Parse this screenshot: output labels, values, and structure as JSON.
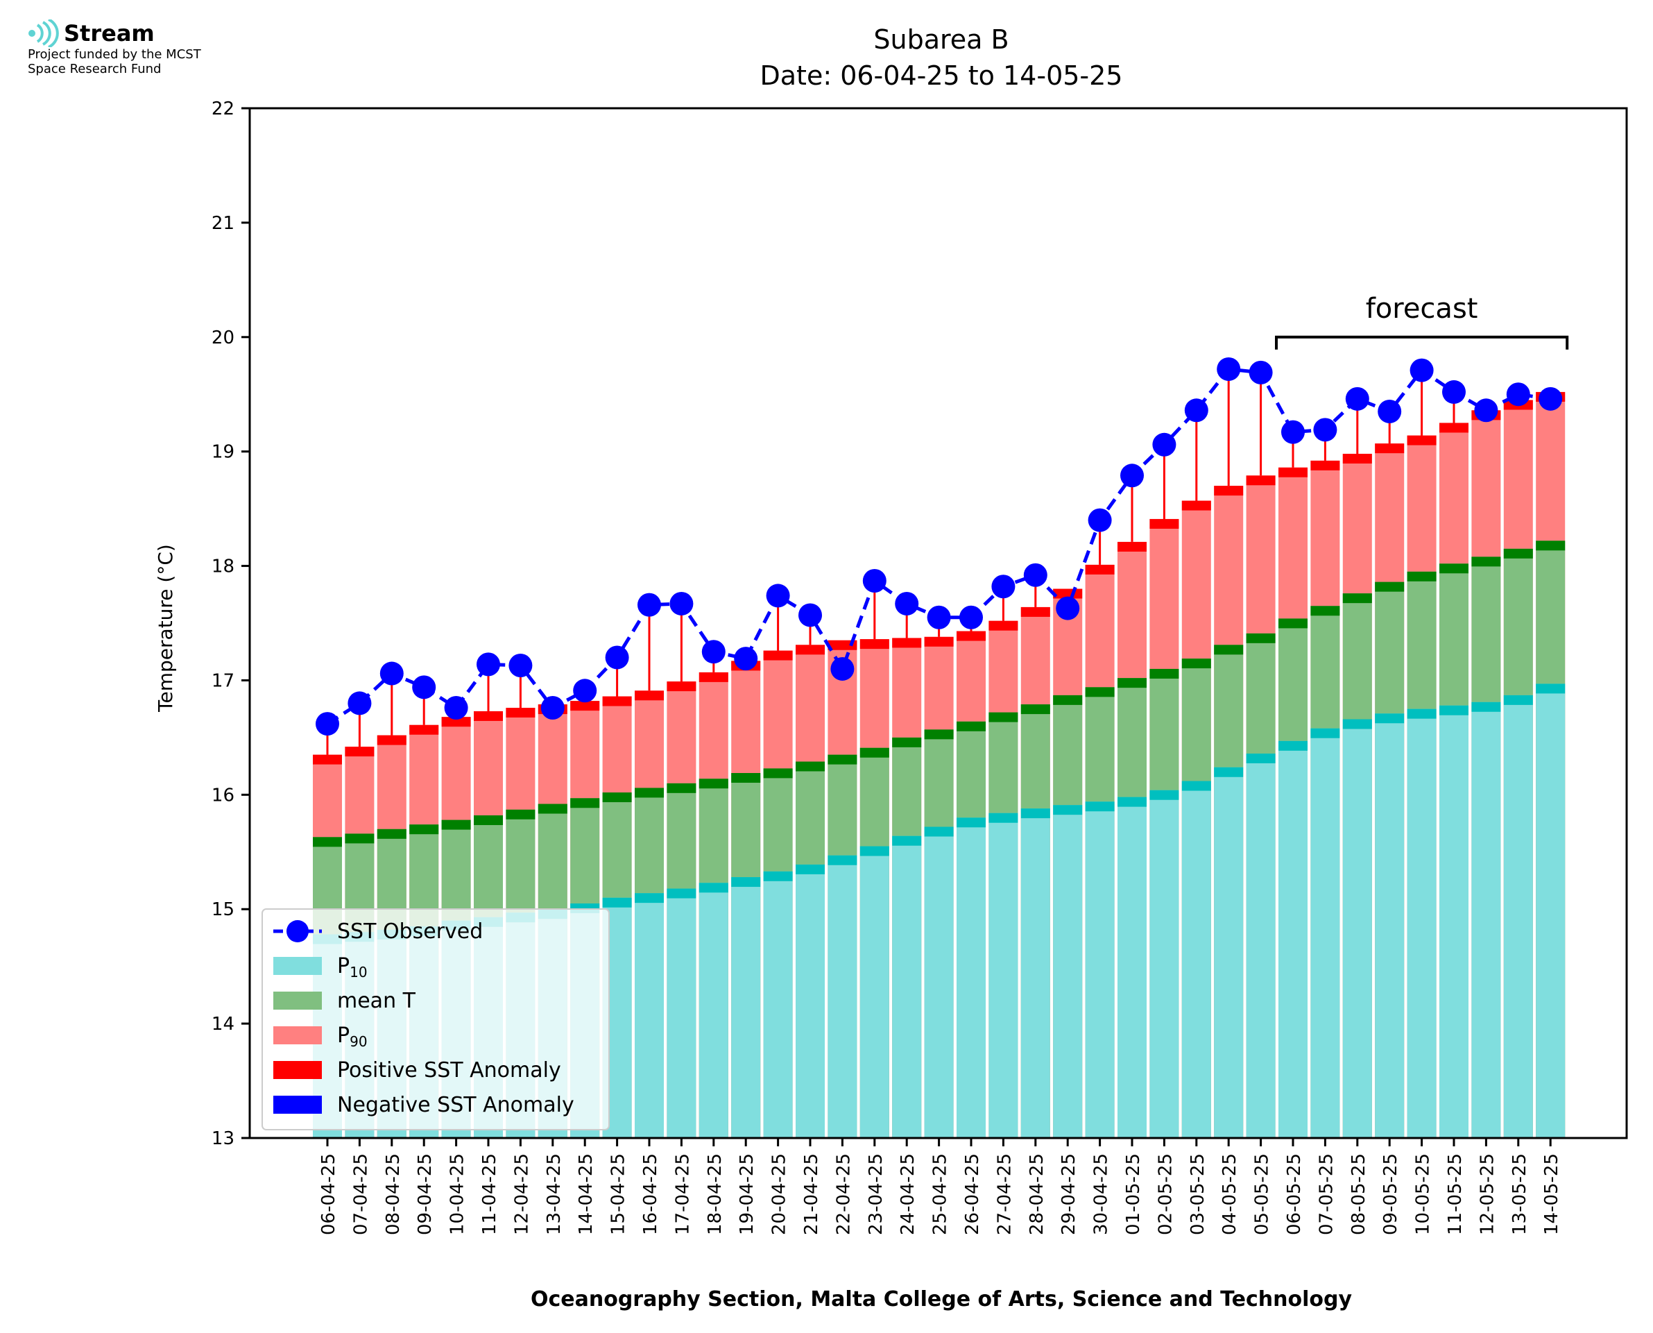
{
  "logo": {
    "name": "Stream",
    "line1": "Project funded by the MCST",
    "line2": "Space Research Fund",
    "icon": "stream-waves-icon",
    "color": "#5fd3d3"
  },
  "chart_data": {
    "type": "bar",
    "title": "Subarea B",
    "subtitle": "Date: 06-04-25 to 14-05-25",
    "xlabel": "Oceanography Section, Malta College of Arts, Science and Technology",
    "ylabel": "Temperature (°C)",
    "ylim": [
      13,
      22
    ],
    "yticks": [
      "13",
      "14",
      "15",
      "16",
      "17",
      "18",
      "19",
      "20",
      "21",
      "22"
    ],
    "grid": false,
    "legend_position": "bottom-left",
    "forecast_label": "forecast",
    "forecast_start": "06-05-25",
    "forecast_end": "14-05-25",
    "colors": {
      "p10": "#80dede",
      "p10_cap": "#00bfbf",
      "mean": "#80bf80",
      "mean_cap": "#008000",
      "p90": "#ff8080",
      "p90_cap": "#ff0000",
      "sst": "#0000ff",
      "positive_anomaly": "#ff0000",
      "negative_anomaly": "#0000ff"
    },
    "legend": [
      {
        "key": "sst",
        "label": "SST Observed",
        "kind": "line-marker"
      },
      {
        "key": "p10",
        "label": "P",
        "sub": "10",
        "kind": "patch"
      },
      {
        "key": "mean",
        "label": "mean T",
        "kind": "patch"
      },
      {
        "key": "p90",
        "label": "P",
        "sub": "90",
        "kind": "patch"
      },
      {
        "key": "positive_anomaly",
        "label": "Positive SST Anomaly",
        "kind": "patch"
      },
      {
        "key": "negative_anomaly",
        "label": "Negative SST Anomaly",
        "kind": "patch"
      }
    ],
    "categories": [
      "06-04-25",
      "07-04-25",
      "08-04-25",
      "09-04-25",
      "10-04-25",
      "11-04-25",
      "12-04-25",
      "13-04-25",
      "14-04-25",
      "15-04-25",
      "16-04-25",
      "17-04-25",
      "18-04-25",
      "19-04-25",
      "20-04-25",
      "21-04-25",
      "22-04-25",
      "23-04-25",
      "24-04-25",
      "25-04-25",
      "26-04-25",
      "27-04-25",
      "28-04-25",
      "29-04-25",
      "30-04-25",
      "01-05-25",
      "02-05-25",
      "03-05-25",
      "04-05-25",
      "05-05-25",
      "06-05-25",
      "07-05-25",
      "08-05-25",
      "09-05-25",
      "10-05-25",
      "11-05-25",
      "12-05-25",
      "13-05-25",
      "14-05-25"
    ],
    "series": [
      {
        "name": "P10",
        "values": [
          14.78,
          14.8,
          14.82,
          14.85,
          14.9,
          14.93,
          14.97,
          15.0,
          15.05,
          15.1,
          15.14,
          15.18,
          15.23,
          15.28,
          15.33,
          15.39,
          15.47,
          15.55,
          15.64,
          15.72,
          15.8,
          15.84,
          15.88,
          15.91,
          15.94,
          15.98,
          16.04,
          16.12,
          16.24,
          16.36,
          16.47,
          16.58,
          16.66,
          16.71,
          16.75,
          16.78,
          16.81,
          16.87,
          16.97
        ]
      },
      {
        "name": "mean T",
        "values": [
          15.63,
          15.66,
          15.7,
          15.74,
          15.78,
          15.82,
          15.87,
          15.92,
          15.97,
          16.02,
          16.06,
          16.1,
          16.14,
          16.19,
          16.23,
          16.29,
          16.35,
          16.41,
          16.5,
          16.57,
          16.64,
          16.72,
          16.79,
          16.87,
          16.94,
          17.02,
          17.1,
          17.19,
          17.31,
          17.41,
          17.54,
          17.65,
          17.76,
          17.86,
          17.95,
          18.02,
          18.08,
          18.15,
          18.22
        ]
      },
      {
        "name": "P90",
        "values": [
          16.35,
          16.42,
          16.52,
          16.61,
          16.68,
          16.73,
          16.76,
          16.79,
          16.82,
          16.86,
          16.91,
          16.99,
          17.07,
          17.17,
          17.26,
          17.31,
          17.35,
          17.36,
          17.37,
          17.38,
          17.43,
          17.52,
          17.64,
          17.8,
          18.01,
          18.21,
          18.41,
          18.57,
          18.7,
          18.79,
          18.86,
          18.92,
          18.98,
          19.07,
          19.14,
          19.25,
          19.36,
          19.45,
          19.52
        ]
      },
      {
        "name": "SST Observed",
        "values": [
          16.62,
          16.8,
          17.06,
          16.94,
          16.76,
          17.14,
          17.13,
          16.76,
          16.91,
          17.2,
          17.66,
          17.67,
          17.25,
          17.19,
          17.74,
          17.57,
          17.1,
          17.87,
          17.67,
          17.55,
          17.55,
          17.82,
          17.92,
          17.63,
          18.4,
          18.79,
          19.06,
          19.36,
          19.72,
          19.69,
          19.17,
          19.19,
          19.46,
          19.35,
          19.71,
          19.52,
          19.36,
          19.5,
          19.46
        ]
      }
    ]
  }
}
